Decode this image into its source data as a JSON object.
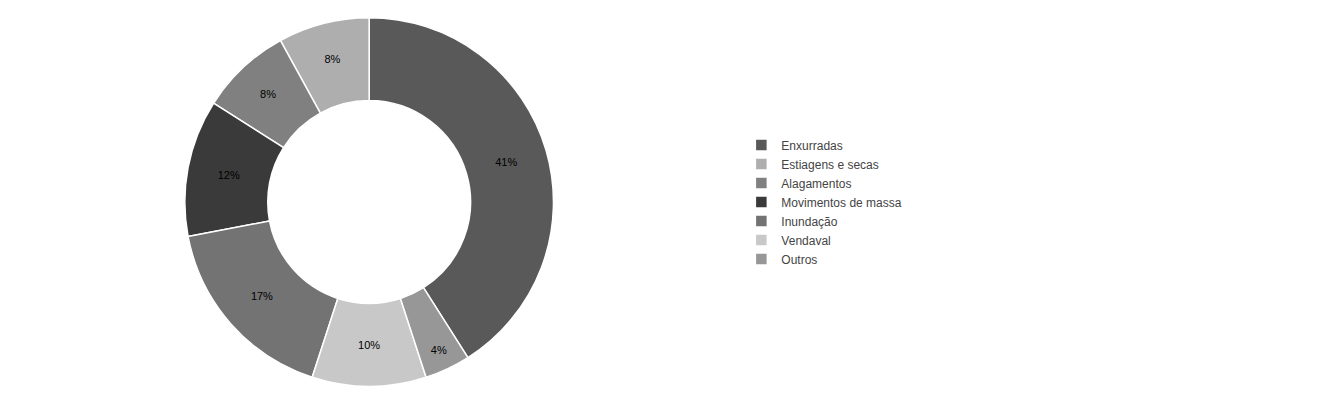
{
  "chart_data": {
    "type": "donut",
    "categories": [
      "Enxurradas",
      "Estiagens e secas",
      "Alagamentos",
      "Movimentos de massa",
      "Inundação",
      "Vendaval",
      "Outros"
    ],
    "values": [
      41,
      8,
      8,
      12,
      17,
      10,
      4
    ],
    "value_labels": [
      "41%",
      "8%",
      "8%",
      "12%",
      "17%",
      "10%",
      "4%"
    ],
    "colors": [
      "#595959",
      "#aeaeae",
      "#808080",
      "#3a3a3a",
      "#737373",
      "#c8c8c8",
      "#979797"
    ],
    "data_labels": true,
    "legend": "right"
  }
}
